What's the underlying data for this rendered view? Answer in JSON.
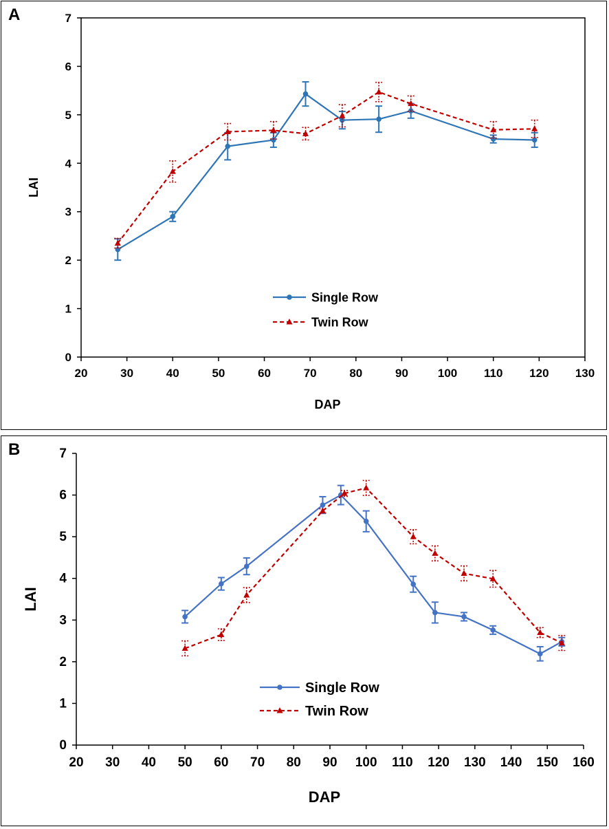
{
  "chart_data": [
    {
      "type": "line",
      "panel_label": "A",
      "xlabel": "DAP",
      "ylabel": "LAI",
      "xlim": [
        20,
        130
      ],
      "ylim": [
        0,
        7
      ],
      "xticks": [
        20,
        30,
        40,
        50,
        60,
        70,
        80,
        90,
        100,
        110,
        120,
        130
      ],
      "yticks": [
        0,
        1,
        2,
        3,
        4,
        5,
        6,
        7
      ],
      "legend_position": "center-bottom",
      "series": [
        {
          "name": "Single Row",
          "color": "#2e75b6",
          "marker": "circle",
          "line_style": "solid",
          "x": [
            28,
            40,
            52,
            62,
            69,
            77,
            85,
            92,
            110,
            119
          ],
          "values": [
            2.22,
            2.9,
            4.35,
            4.48,
            5.43,
            4.89,
            4.91,
            5.08,
            4.5,
            4.48
          ],
          "errors": [
            0.22,
            0.1,
            0.28,
            0.15,
            0.25,
            0.18,
            0.27,
            0.15,
            0.08,
            0.15
          ]
        },
        {
          "name": "Twin Row",
          "color": "#c00000",
          "marker": "triangle",
          "line_style": "dashed",
          "x": [
            28,
            40,
            52,
            62,
            69,
            77,
            85,
            92,
            110,
            119
          ],
          "values": [
            2.35,
            3.83,
            4.65,
            4.68,
            4.61,
            4.98,
            5.47,
            5.23,
            4.69,
            4.71
          ],
          "errors": [
            0.1,
            0.22,
            0.17,
            0.18,
            0.13,
            0.23,
            0.2,
            0.16,
            0.17,
            0.18
          ]
        }
      ]
    },
    {
      "type": "line",
      "panel_label": "B",
      "xlabel": "DAP",
      "ylabel": "LAI",
      "xlim": [
        20,
        160
      ],
      "ylim": [
        0,
        7
      ],
      "xticks": [
        20,
        30,
        40,
        50,
        60,
        70,
        80,
        90,
        100,
        110,
        120,
        130,
        140,
        150,
        160
      ],
      "yticks": [
        0,
        1,
        2,
        3,
        4,
        5,
        6,
        7
      ],
      "legend_position": "center-bottom",
      "series": [
        {
          "name": "Single Row",
          "color": "#4472c4",
          "marker": "circle",
          "line_style": "solid",
          "x": [
            50,
            60,
            67,
            88,
            93,
            100,
            113,
            119,
            127,
            135,
            148,
            154
          ],
          "values": [
            3.08,
            3.87,
            4.29,
            5.76,
            6.0,
            5.37,
            3.86,
            3.18,
            3.08,
            2.76,
            2.19,
            2.48
          ],
          "errors": [
            0.15,
            0.15,
            0.2,
            0.2,
            0.23,
            0.25,
            0.19,
            0.25,
            0.1,
            0.1,
            0.17,
            0.1
          ]
        },
        {
          "name": "Twin Row",
          "color": "#c00000",
          "marker": "triangle",
          "line_style": "dashed",
          "x": [
            50,
            60,
            67,
            88,
            94,
            100,
            113,
            119,
            127,
            135,
            148,
            154
          ],
          "values": [
            2.32,
            2.65,
            3.6,
            5.62,
            6.04,
            6.17,
            5.0,
            4.6,
            4.12,
            3.99,
            2.7,
            2.45
          ],
          "errors": [
            0.18,
            0.14,
            0.18,
            0.05,
            0.07,
            0.18,
            0.17,
            0.18,
            0.18,
            0.2,
            0.12,
            0.18
          ]
        }
      ]
    }
  ]
}
